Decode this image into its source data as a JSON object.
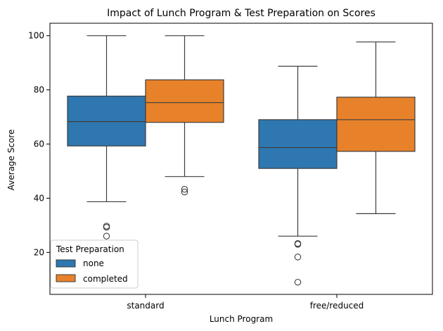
{
  "chart_data": {
    "type": "box",
    "title": "Impact of Lunch Program & Test Preparation on Scores",
    "xlabel": "Lunch Program",
    "ylabel": "Average Score",
    "categories": [
      "standard",
      "free/reduced"
    ],
    "ylim": [
      4.5,
      104.6
    ],
    "yticks": [
      20,
      40,
      60,
      80,
      100
    ],
    "grid": false,
    "legend": {
      "title": "Test Preparation",
      "placement": "lower-left"
    },
    "series": [
      {
        "name": "none",
        "color": "#2e77b0",
        "boxes": [
          {
            "category": "standard",
            "whisker_low": 38.7,
            "q1": 59.3,
            "median": 68.3,
            "q3": 77.7,
            "whisker_high": 100,
            "outliers": [
              29.7,
              29.3,
              26.0
            ]
          },
          {
            "category": "free/reduced",
            "whisker_low": 26.0,
            "q1": 51.0,
            "median": 58.7,
            "q3": 69.0,
            "whisker_high": 88.7,
            "outliers": [
              23.3,
              23.0,
              18.3,
              9.0
            ]
          }
        ]
      },
      {
        "name": "completed",
        "color": "#e8822a",
        "boxes": [
          {
            "category": "standard",
            "whisker_low": 48.0,
            "q1": 68.0,
            "median": 75.3,
            "q3": 83.7,
            "whisker_high": 100,
            "outliers": [
              43.3,
              42.3
            ]
          },
          {
            "category": "free/reduced",
            "whisker_low": 34.3,
            "q1": 57.3,
            "median": 69.0,
            "q3": 77.3,
            "whisker_high": 97.7,
            "outliers": []
          }
        ]
      }
    ]
  }
}
